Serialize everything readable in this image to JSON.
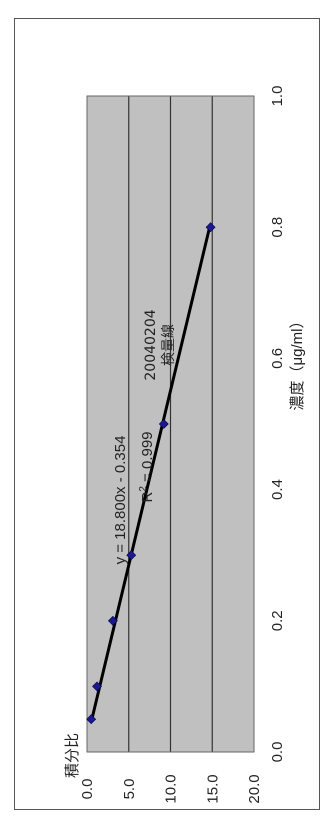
{
  "chart_data": {
    "type": "scatter",
    "title_lines": [
      "20040204",
      "検量線"
    ],
    "xlabel": "濃度（μg/ml）",
    "ylabel": "積分比",
    "xlim": [
      0.0,
      1.0
    ],
    "ylim": [
      0.0,
      20.0
    ],
    "x_ticks": [
      "0.0",
      "0.2",
      "0.4",
      "0.6",
      "0.8",
      "1.0"
    ],
    "y_ticks": [
      "0.0",
      "5.0",
      "10.0",
      "15.0",
      "20.0"
    ],
    "series": [
      {
        "x": [
          0.05,
          0.1,
          0.2,
          0.3,
          0.5,
          0.8
        ],
        "y": [
          0.5,
          1.2,
          3.1,
          5.3,
          9.2,
          14.8
        ],
        "marker_color": "#1a1a8c"
      }
    ],
    "trendline": {
      "slope": 18.8,
      "intercept": -0.354,
      "x_range": [
        0.05,
        0.8
      ],
      "color": "#000000"
    },
    "equation_text": "y = 18.800x - 0.354",
    "r2_label": "R",
    "r2_sup": "2",
    "r2_value_text": " = 0.999",
    "grid": true,
    "plot_background": "#c0c0c0"
  }
}
